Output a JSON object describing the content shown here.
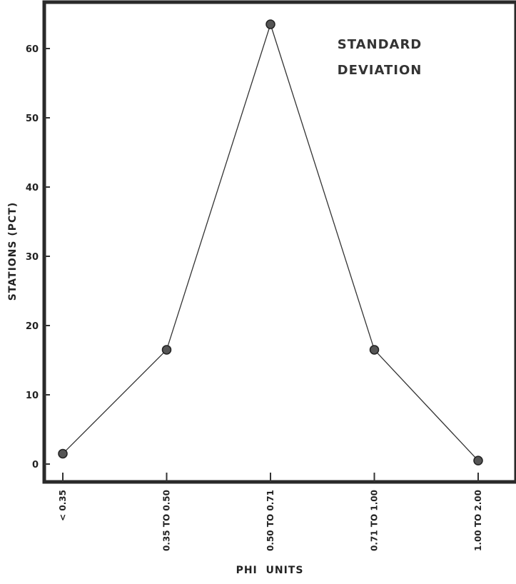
{
  "chart_data": {
    "type": "line",
    "categories": [
      "< 0.35",
      "0.35 TO 0.50",
      "0.50 TO 0.71",
      "0.71 TO 1.00",
      "1.00 TO 2.00"
    ],
    "values": [
      1.5,
      16.5,
      63.5,
      16.5,
      0.5
    ],
    "xlabel": "PHI  UNITS",
    "ylabel": "STATIONS (PCT)",
    "ylim": [
      0,
      65
    ],
    "yticks": [
      0,
      10,
      20,
      30,
      40,
      50,
      60
    ],
    "annotation": [
      "STANDARD",
      "DEVIATION"
    ],
    "grid": false,
    "colors": {
      "line": "#333333",
      "marker": "#555555",
      "frame": "#2a2a2a"
    }
  }
}
